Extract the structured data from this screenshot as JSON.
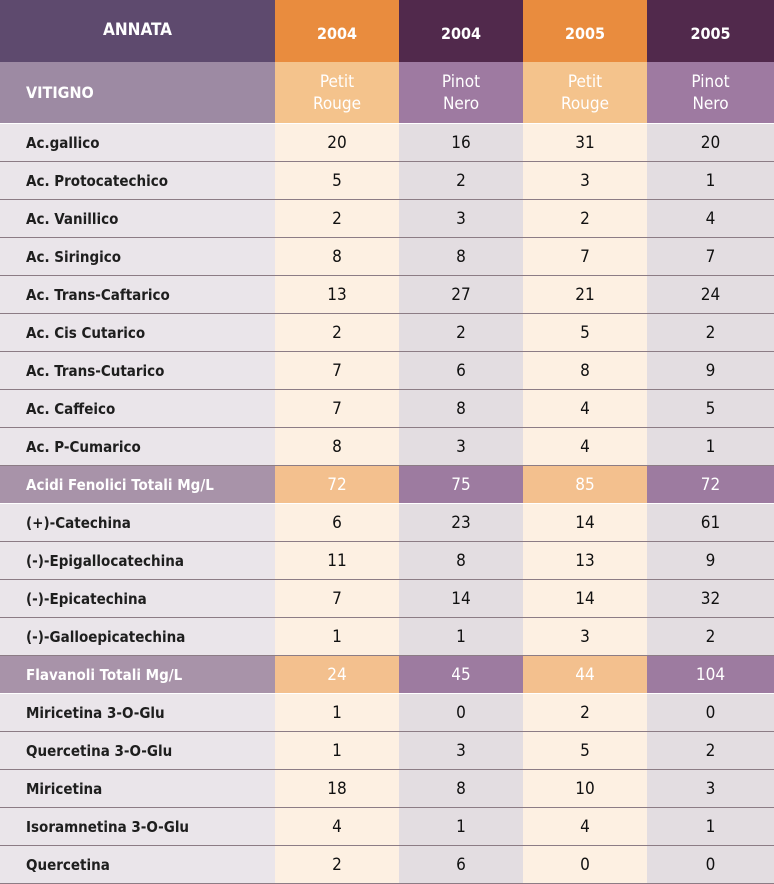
{
  "header": {
    "annata_label": "ANNATA",
    "vitigno_label": "VITIGNO",
    "years": [
      "2004",
      "2004",
      "2005",
      "2005"
    ],
    "varieties": [
      {
        "line1": "Petit",
        "line2": "Rouge"
      },
      {
        "line1": "Pinot",
        "line2": "Nero"
      },
      {
        "line1": "Petit",
        "line2": "Rouge"
      },
      {
        "line1": "Pinot",
        "line2": "Nero"
      }
    ]
  },
  "rows": [
    {
      "label": "Ac.gallico",
      "values": [
        "20",
        "16",
        "31",
        "20"
      ],
      "total": false
    },
    {
      "label": "Ac. Protocatechico",
      "values": [
        "5",
        "2",
        "3",
        "1"
      ],
      "total": false
    },
    {
      "label": "Ac. Vanillico",
      "values": [
        "2",
        "3",
        "2",
        "4"
      ],
      "total": false
    },
    {
      "label": "Ac. Siringico",
      "values": [
        "8",
        "8",
        "7",
        "7"
      ],
      "total": false
    },
    {
      "label": "Ac. Trans-Caftarico",
      "values": [
        "13",
        "27",
        "21",
        "24"
      ],
      "total": false
    },
    {
      "label": "Ac. Cis Cutarico",
      "values": [
        "2",
        "2",
        "5",
        "2"
      ],
      "total": false
    },
    {
      "label": "Ac. Trans-Cutarico",
      "values": [
        "7",
        "6",
        "8",
        "9"
      ],
      "total": false
    },
    {
      "label": "Ac. Caffeico",
      "values": [
        "7",
        "8",
        "4",
        "5"
      ],
      "total": false
    },
    {
      "label": "Ac. P-Cumarico",
      "values": [
        "8",
        "3",
        "4",
        "1"
      ],
      "total": false
    },
    {
      "label": "Acidi Fenolici Totali Mg/L",
      "values": [
        "72",
        "75",
        "85",
        "72"
      ],
      "total": true
    },
    {
      "label": "(+)-Catechina",
      "values": [
        "6",
        "23",
        "14",
        "61"
      ],
      "total": false
    },
    {
      "label": "(-)-Epigallocatechina",
      "values": [
        "11",
        "8",
        "13",
        "9"
      ],
      "total": false
    },
    {
      "label": "(-)-Epicatechina",
      "values": [
        "7",
        "14",
        "14",
        "32"
      ],
      "total": false
    },
    {
      "label": "(-)-Galloepicatechina",
      "values": [
        "1",
        "1",
        "3",
        "2"
      ],
      "total": false
    },
    {
      "label": "Flavanoli Totali Mg/L",
      "values": [
        "24",
        "45",
        "44",
        "104"
      ],
      "total": true
    },
    {
      "label": "Miricetina 3-O-Glu",
      "values": [
        "1",
        "0",
        "2",
        "0"
      ],
      "total": false
    },
    {
      "label": "Quercetina 3-O-Glu",
      "values": [
        "1",
        "3",
        "5",
        "2"
      ],
      "total": false
    },
    {
      "label": "Miricetina",
      "values": [
        "18",
        "8",
        "10",
        "3"
      ],
      "total": false
    },
    {
      "label": "Isoramnetina 3-O-Glu",
      "values": [
        "4",
        "1",
        "4",
        "1"
      ],
      "total": false
    },
    {
      "label": "Quercetina",
      "values": [
        "2",
        "6",
        "0",
        "0"
      ],
      "total": false
    }
  ]
}
